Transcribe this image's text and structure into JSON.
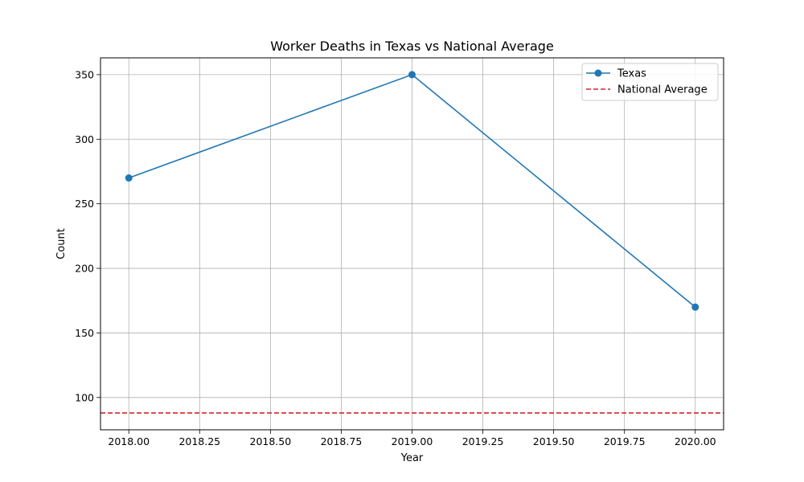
{
  "chart_data": {
    "type": "line",
    "title": "Worker Deaths in Texas vs National Average",
    "xlabel": "Year",
    "ylabel": "Count",
    "xlim": [
      2017.9,
      2020.1
    ],
    "ylim": [
      75,
      363
    ],
    "xticks": [
      2018.0,
      2018.25,
      2018.5,
      2018.75,
      2019.0,
      2019.25,
      2019.5,
      2019.75,
      2020.0
    ],
    "xtick_labels": [
      "2018.00",
      "2018.25",
      "2018.50",
      "2018.75",
      "2019.00",
      "2019.25",
      "2019.50",
      "2019.75",
      "2020.00"
    ],
    "yticks": [
      100,
      150,
      200,
      250,
      300,
      350
    ],
    "ytick_labels": [
      "100",
      "150",
      "200",
      "250",
      "300",
      "350"
    ],
    "grid": true,
    "legend_position": "top-right",
    "series": [
      {
        "name": "Texas",
        "style": "solid-marker",
        "color": "#1f77b4",
        "x": [
          2018,
          2019,
          2020
        ],
        "y": [
          270,
          350,
          170
        ]
      },
      {
        "name": "National Average",
        "style": "dashed-horizontal",
        "color": "#d62728",
        "y": 88
      }
    ]
  }
}
